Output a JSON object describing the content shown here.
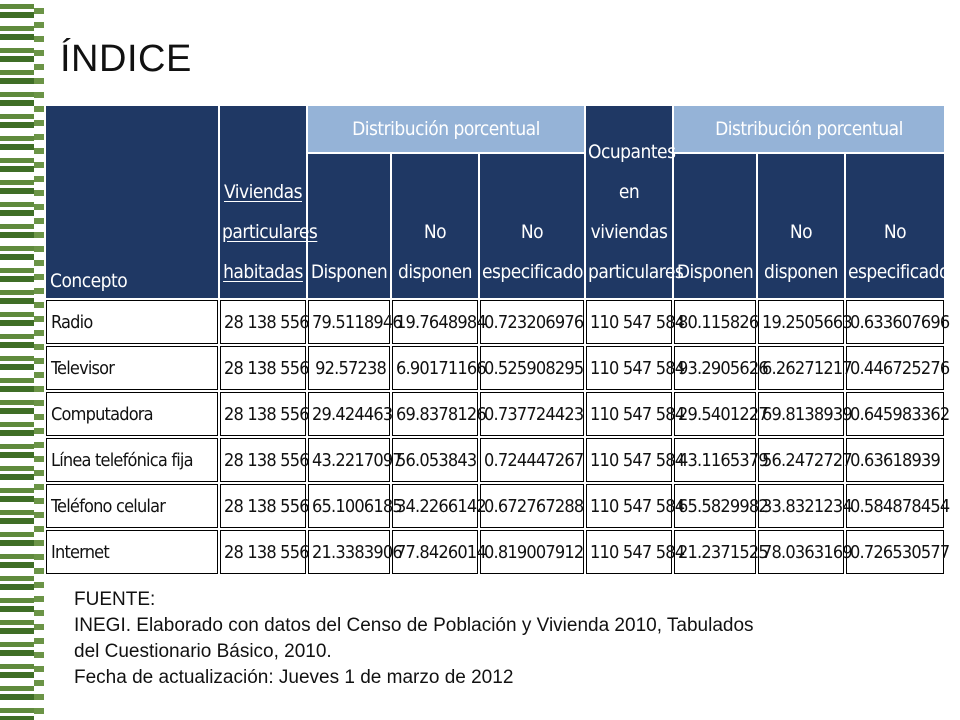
{
  "title": "ÍNDICE",
  "table": {
    "headers": {
      "concepto": "Concepto",
      "viviendas": [
        "Viviendas",
        "particulares",
        "habitadas"
      ],
      "dist1": "Distribución porcentual",
      "ocupantes": [
        "Ocupantes",
        "en",
        "viviendas",
        "particulares"
      ],
      "dist2": "Distribución porcentual",
      "disponen": "Disponen",
      "no_disponen": [
        "No",
        "disponen"
      ],
      "no_especificado": [
        "No",
        "especificado"
      ]
    },
    "rows": [
      {
        "concepto": "Radio",
        "viviendas": "28 138 556",
        "disponen": "79.5118946",
        "no_disponen": "19.7648984",
        "no_especificado": "0.723206976",
        "ocupantes": "110 547 584",
        "o_disponen": "80.115826",
        "o_no_disponen": "19.2505663",
        "o_no_especificado": "0.633607696"
      },
      {
        "concepto": "Televisor",
        "viviendas": "28 138 556",
        "disponen": "92.57238",
        "no_disponen": "6.90171166",
        "no_especificado": "0.525908295",
        "ocupantes": "110 547 584",
        "o_disponen": "93.2905626",
        "o_no_disponen": "6.26271217",
        "o_no_especificado": "0.446725276"
      },
      {
        "concepto": "Computadora",
        "viviendas": "28 138 556",
        "disponen": "29.424463",
        "no_disponen": "69.8378126",
        "no_especificado": "0.737724423",
        "ocupantes": "110 547 584",
        "o_disponen": "29.5401227",
        "o_no_disponen": "69.8138939",
        "o_no_especificado": "0.645983362"
      },
      {
        "concepto": "Línea telefónica fija",
        "viviendas": "28 138 556",
        "disponen": "43.2217097",
        "no_disponen": "56.053843",
        "no_especificado": "0.724447267",
        "ocupantes": "110 547 584",
        "o_disponen": "43.1165379",
        "o_no_disponen": "56.2472727",
        "o_no_especificado": "0.63618939"
      },
      {
        "concepto": "Teléfono celular",
        "viviendas": "28 138 556",
        "disponen": "65.1006185",
        "no_disponen": "34.2266142",
        "no_especificado": "0.672767288",
        "ocupantes": "110 547 584",
        "o_disponen": "65.5829982",
        "o_no_disponen": "33.8321234",
        "o_no_especificado": "0.584878454"
      },
      {
        "concepto": "Internet",
        "viviendas": "28 138 556",
        "disponen": "21.3383906",
        "no_disponen": "77.8426014",
        "no_especificado": "0.819007912",
        "ocupantes": "110 547 584",
        "o_disponen": "21.2371525",
        "o_no_disponen": "78.0363169",
        "o_no_especificado": "0.726530577"
      }
    ]
  },
  "source": {
    "label": "FUENTE:",
    "line1": "INEGI. Elaborado con datos del Censo de Población y Vivienda 2010, Tabulados",
    "line2": "del Cuestionario Básico, 2010.",
    "line3": "Fecha de actualización: Jueves 1 de marzo de 2012"
  }
}
